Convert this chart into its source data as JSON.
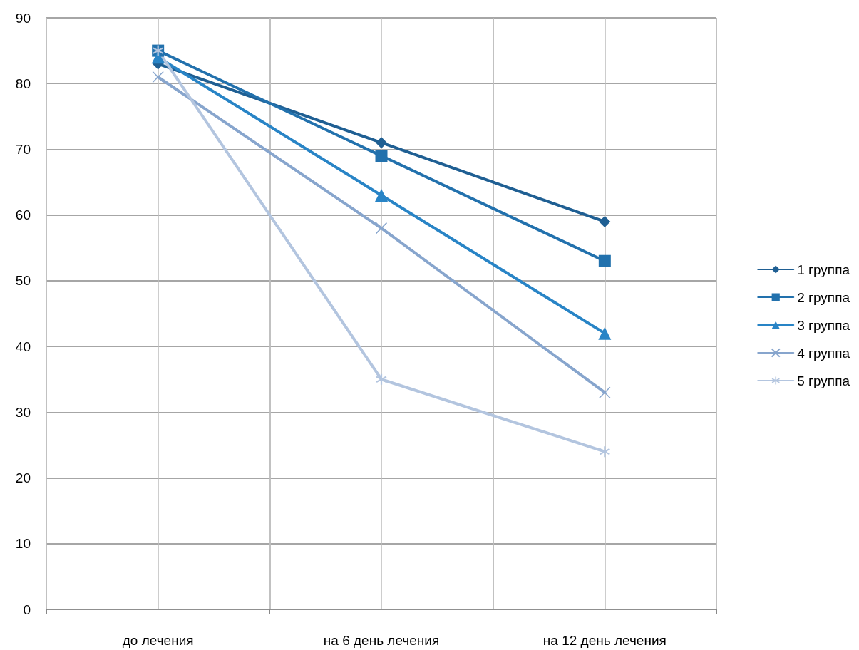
{
  "chart_data": {
    "type": "line",
    "categories": [
      "до лечения",
      "на 6 день лечения",
      "на 12 день лечения"
    ],
    "series": [
      {
        "name": "1 группа",
        "color": "#1f5f93",
        "marker": "diamond",
        "values": [
          83,
          71,
          59
        ]
      },
      {
        "name": "2 группа",
        "color": "#2271ad",
        "marker": "square",
        "values": [
          85,
          69,
          53
        ]
      },
      {
        "name": "3 группа",
        "color": "#2884c6",
        "marker": "triangle",
        "values": [
          84,
          63,
          42
        ]
      },
      {
        "name": "4 группа",
        "color": "#87a5cd",
        "marker": "cross",
        "values": [
          81,
          58,
          33
        ]
      },
      {
        "name": "5 группа",
        "color": "#b3c5df",
        "marker": "star",
        "values": [
          85,
          35,
          24
        ]
      }
    ],
    "ylim": [
      0,
      90
    ],
    "yticks": [
      0,
      10,
      20,
      30,
      40,
      50,
      60,
      70,
      80,
      90
    ],
    "grid": true,
    "legend": "right",
    "line_style": "solid"
  }
}
